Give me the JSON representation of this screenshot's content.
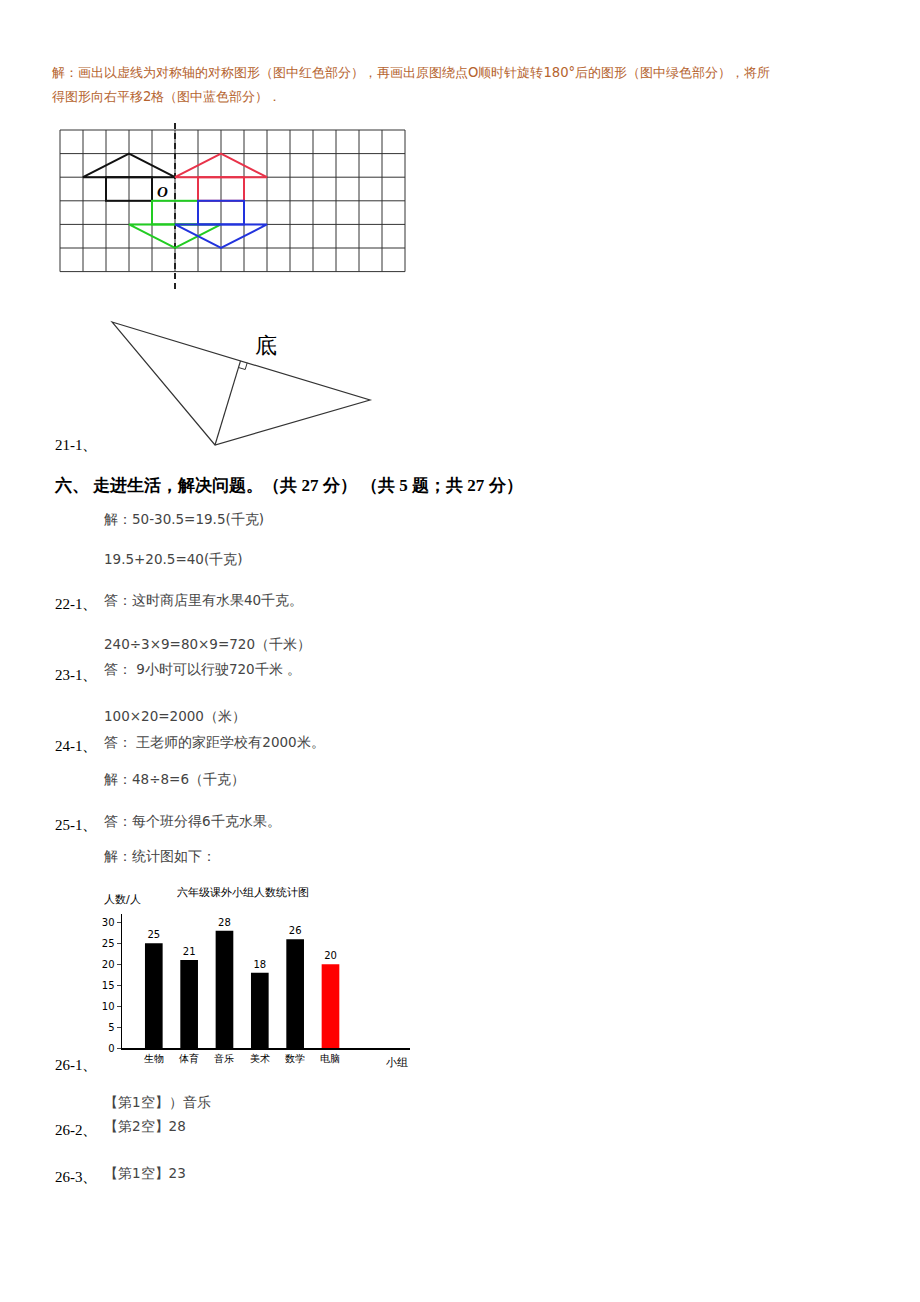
{
  "intro_lines": [
    "解：画出以虚线为对称轴的对称图形（图中红色部分），再画出原图绕点O顺时针旋转180°后的图形（图中绿色部分），将所",
    "得图形向右平移2格（图中蓝色部分）．"
  ],
  "grid_figure": {
    "point_label": "O"
  },
  "question_21": {
    "number": "21-1、",
    "side_label": "底"
  },
  "section": {
    "title": "六、 走进生活，解决问题。（共 27 分） （共 5 题；共 27 分）"
  },
  "answers": [
    {
      "number": "22-1、",
      "lines": [
        "解：50-30.5=19.5(千克)",
        "19.5+20.5=40(千克)",
        "答：这时商店里有水果40千克。"
      ]
    },
    {
      "number": "23-1、",
      "lines": [
        "240÷3×9=80×9=720（千米）",
        "答： 9小时可以行驶720千米 。"
      ]
    },
    {
      "number": "24-1、",
      "lines": [
        "100×20=2000（米）",
        "答： 王老师的家距学校有2000米。"
      ]
    },
    {
      "number": "25-1、",
      "lines": [
        "解：48÷8=6（千克）",
        "答：每个班分得6千克水果。"
      ]
    }
  ],
  "question_26": {
    "number": "26-1、",
    "intro": "解：统计图如下：",
    "parts": [
      {
        "number": null,
        "lines": [
          "【第1空】）音乐"
        ]
      },
      {
        "number": "26-2、",
        "lines": [
          "【第2空】28"
        ]
      },
      {
        "number": "26-3、",
        "lines": [
          "【第1空】23"
        ]
      }
    ]
  },
  "chart_data": {
    "type": "bar",
    "title": "六年级课外小组人数统计图",
    "y_label": "人数/人",
    "x_label": "小组",
    "categories": [
      "生物",
      "体育",
      "音乐",
      "美术",
      "数学",
      "电脑"
    ],
    "values": [
      25,
      21,
      28,
      18,
      26,
      20
    ],
    "colors": [
      "#000000",
      "#000000",
      "#000000",
      "#000000",
      "#000000",
      "#ff0000"
    ],
    "ylim": [
      0,
      32
    ],
    "yticks": [
      0,
      5,
      10,
      15,
      20,
      25,
      30
    ],
    "grid": false,
    "data_labels": true
  }
}
